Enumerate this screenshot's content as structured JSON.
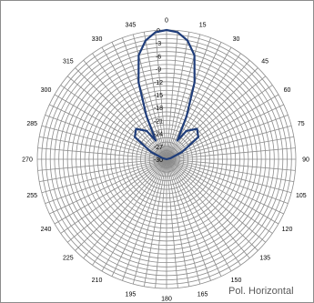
{
  "chart_data": {
    "type": "polar-line",
    "title": "Pol. Horizontal",
    "angle_ticks": [
      "0",
      "15",
      "30",
      "45",
      "60",
      "75",
      "90",
      "105",
      "120",
      "135",
      "150",
      "165",
      "180",
      "195",
      "210",
      "225",
      "240",
      "255",
      "270",
      "285",
      "300",
      "315",
      "330",
      "345"
    ],
    "radial_ticks": [
      "0",
      "-3",
      "-6",
      "-9",
      "-12",
      "-15",
      "-18",
      "-21",
      "-24",
      "-27",
      "-30"
    ],
    "rlim": [
      -30,
      0
    ],
    "grid": true,
    "angular_gridlines_deg": 5,
    "series": [
      {
        "color": "#1f3d7a",
        "points": [
          {
            "angle": 0,
            "value": 0
          },
          {
            "angle": 5,
            "value": -0.4
          },
          {
            "angle": 10,
            "value": -2
          },
          {
            "angle": 15,
            "value": -5
          },
          {
            "angle": 20,
            "value": -11
          },
          {
            "angle": 25,
            "value": -19
          },
          {
            "angle": 30,
            "value": -25
          },
          {
            "angle": 35,
            "value": -22
          },
          {
            "angle": 45,
            "value": -20
          },
          {
            "angle": 55,
            "value": -21
          },
          {
            "angle": 65,
            "value": -26
          },
          {
            "angle": 75,
            "value": -29
          },
          {
            "angle": 90,
            "value": -30
          },
          {
            "angle": 180,
            "value": -30
          },
          {
            "angle": 270,
            "value": -30
          },
          {
            "angle": 285,
            "value": -29
          },
          {
            "angle": 295,
            "value": -26
          },
          {
            "angle": 305,
            "value": -21
          },
          {
            "angle": 315,
            "value": -20
          },
          {
            "angle": 325,
            "value": -22
          },
          {
            "angle": 330,
            "value": -25
          },
          {
            "angle": 335,
            "value": -19
          },
          {
            "angle": 340,
            "value": -11
          },
          {
            "angle": 345,
            "value": -5
          },
          {
            "angle": 350,
            "value": -2
          },
          {
            "angle": 355,
            "value": -0.4
          },
          {
            "angle": 360,
            "value": 0
          }
        ]
      }
    ],
    "colors": {
      "grid": "#8c8c8c",
      "series": "#1f3d7a",
      "frame": "#8c8c8c",
      "title": "#595959"
    }
  }
}
